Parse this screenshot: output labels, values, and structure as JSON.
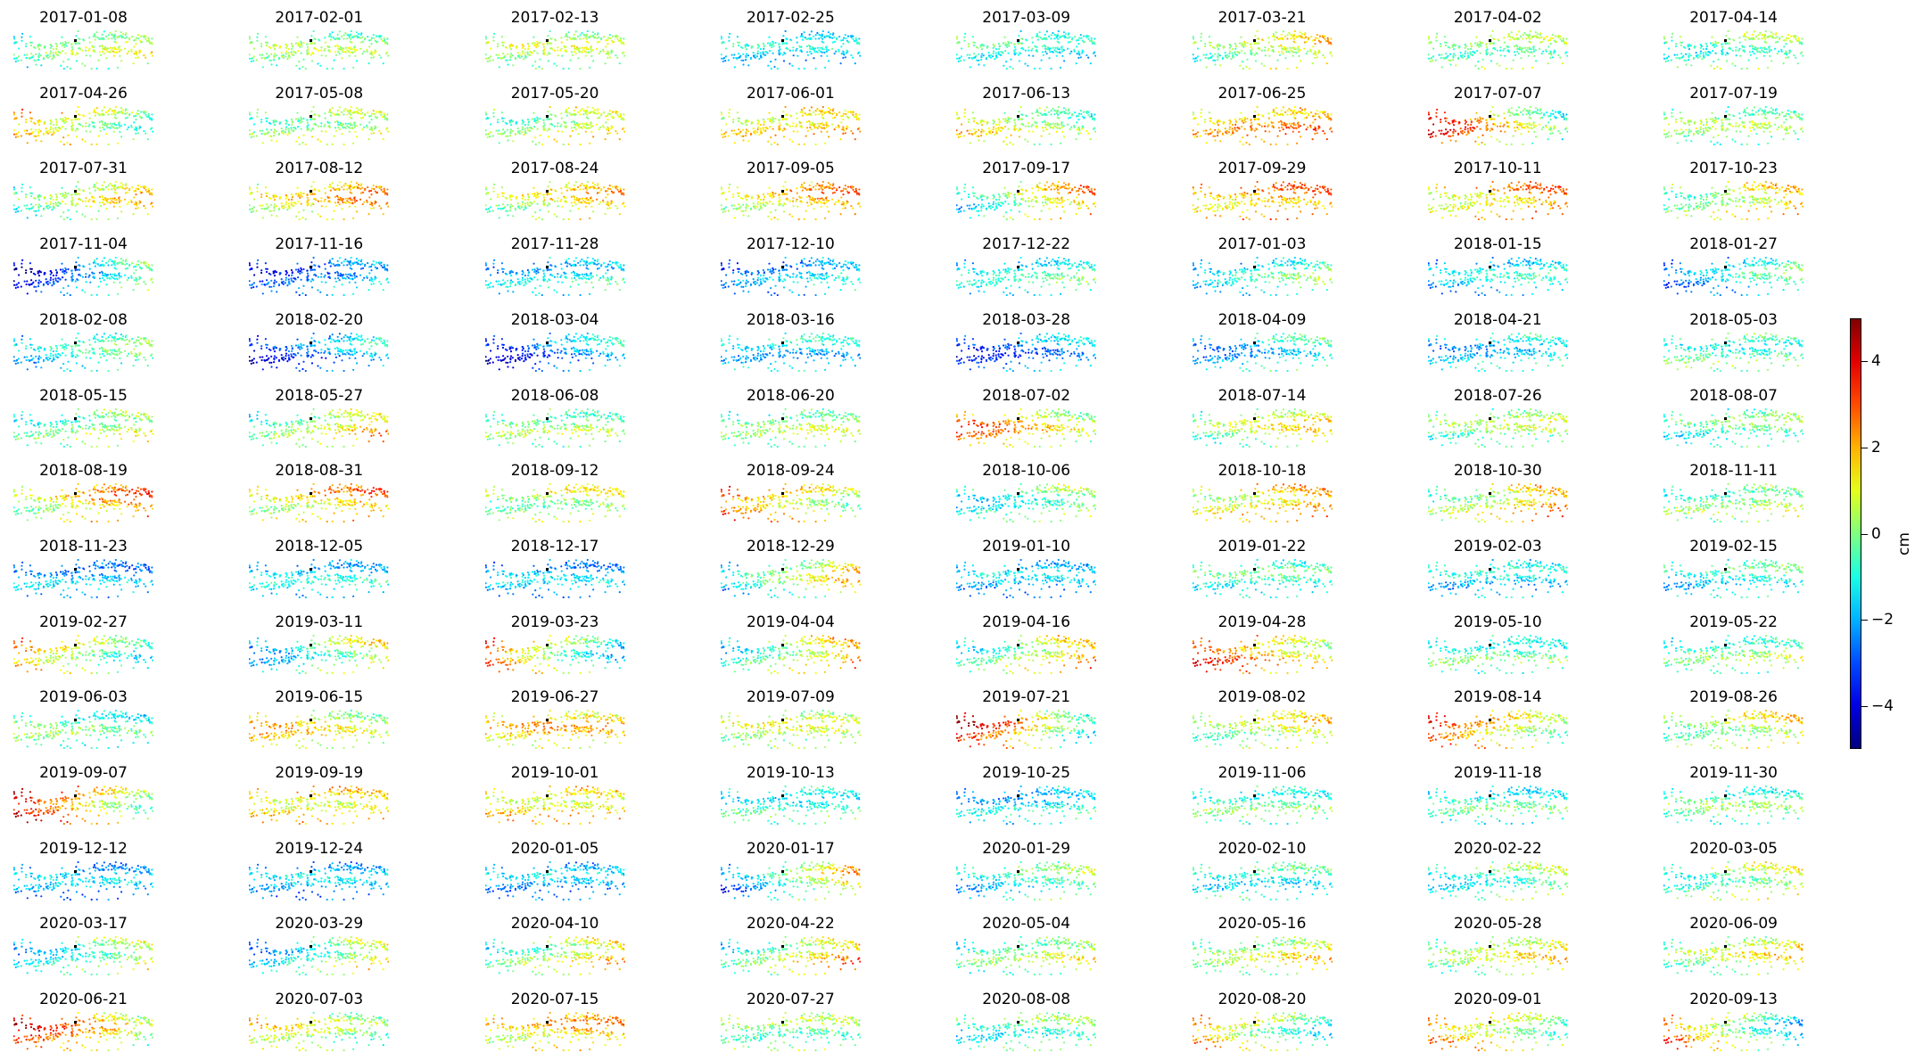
{
  "chart_data": {
    "type": "scatter",
    "title": "",
    "colormap": "jet",
    "colorbar": {
      "label": "cm",
      "vmin": -5,
      "vmax": 5,
      "ticks": [
        4,
        2,
        0,
        -2,
        -4
      ],
      "tick_labels": [
        "4",
        "2",
        "0",
        "−2",
        "−4"
      ]
    },
    "reference_point_color": "#000000",
    "axes_visible": false,
    "panels": [
      {
        "date": "2017-01-08",
        "mean": 0.0,
        "trend": 1.0
      },
      {
        "date": "2017-02-01",
        "mean": 0.0,
        "trend": 0.0
      },
      {
        "date": "2017-02-13",
        "mean": 0.3,
        "trend": 0.0
      },
      {
        "date": "2017-02-25",
        "mean": -1.5,
        "trend": 0.0
      },
      {
        "date": "2017-03-09",
        "mean": -1.0,
        "trend": -0.5
      },
      {
        "date": "2017-03-21",
        "mean": 0.5,
        "trend": 1.0
      },
      {
        "date": "2017-04-02",
        "mean": 0.0,
        "trend": 0.0
      },
      {
        "date": "2017-04-14",
        "mean": -0.3,
        "trend": 0.5
      },
      {
        "date": "2017-04-26",
        "mean": 0.8,
        "trend": -1.5
      },
      {
        "date": "2017-05-08",
        "mean": 0.3,
        "trend": 0.5
      },
      {
        "date": "2017-05-20",
        "mean": 0.5,
        "trend": 1.0
      },
      {
        "date": "2017-06-01",
        "mean": 1.5,
        "trend": 0.5
      },
      {
        "date": "2017-06-13",
        "mean": 0.5,
        "trend": -1.0
      },
      {
        "date": "2017-06-25",
        "mean": 2.0,
        "trend": 0.5
      },
      {
        "date": "2017-07-07",
        "mean": 1.5,
        "trend": -2.5
      },
      {
        "date": "2017-07-19",
        "mean": 0.0,
        "trend": 0.0
      },
      {
        "date": "2017-07-31",
        "mean": 0.5,
        "trend": 1.5
      },
      {
        "date": "2017-08-12",
        "mean": 1.5,
        "trend": 1.0
      },
      {
        "date": "2017-08-24",
        "mean": 1.0,
        "trend": 1.0
      },
      {
        "date": "2017-09-05",
        "mean": 1.5,
        "trend": 1.0
      },
      {
        "date": "2017-09-17",
        "mean": 0.5,
        "trend": 2.0
      },
      {
        "date": "2017-09-29",
        "mean": 2.0,
        "trend": 0.5
      },
      {
        "date": "2017-10-11",
        "mean": 1.8,
        "trend": 1.0
      },
      {
        "date": "2017-10-23",
        "mean": 0.8,
        "trend": 1.5
      },
      {
        "date": "2017-11-04",
        "mean": -2.0,
        "trend": 2.5
      },
      {
        "date": "2017-11-16",
        "mean": -2.5,
        "trend": 1.0
      },
      {
        "date": "2017-11-28",
        "mean": -1.5,
        "trend": 0.5
      },
      {
        "date": "2017-12-10",
        "mean": -2.0,
        "trend": 1.0
      },
      {
        "date": "2017-12-22",
        "mean": -1.0,
        "trend": 0.5
      },
      {
        "date": "2017-01-03",
        "mean": -1.0,
        "trend": 1.0
      },
      {
        "date": "2018-01-15",
        "mean": -1.5,
        "trend": 0.5
      },
      {
        "date": "2018-01-27",
        "mean": -1.5,
        "trend": 1.5
      },
      {
        "date": "2018-02-08",
        "mean": -1.0,
        "trend": 1.0
      },
      {
        "date": "2018-02-20",
        "mean": -2.5,
        "trend": 1.5
      },
      {
        "date": "2018-03-04",
        "mean": -2.5,
        "trend": 1.5
      },
      {
        "date": "2018-03-16",
        "mean": -1.5,
        "trend": 0.0
      },
      {
        "date": "2018-03-28",
        "mean": -2.5,
        "trend": 1.0
      },
      {
        "date": "2018-04-09",
        "mean": -1.5,
        "trend": 1.0
      },
      {
        "date": "2018-04-21",
        "mean": -1.5,
        "trend": 0.5
      },
      {
        "date": "2018-05-03",
        "mean": -0.5,
        "trend": 0.0
      },
      {
        "date": "2018-05-15",
        "mean": 0.0,
        "trend": 1.0
      },
      {
        "date": "2018-05-27",
        "mean": 0.5,
        "trend": 1.5
      },
      {
        "date": "2018-06-08",
        "mean": 0.0,
        "trend": 0.0
      },
      {
        "date": "2018-06-20",
        "mean": 0.0,
        "trend": 0.5
      },
      {
        "date": "2018-07-02",
        "mean": 1.5,
        "trend": -1.5
      },
      {
        "date": "2018-07-14",
        "mean": 0.5,
        "trend": 1.0
      },
      {
        "date": "2018-07-26",
        "mean": 0.0,
        "trend": 0.5
      },
      {
        "date": "2018-08-07",
        "mean": -0.5,
        "trend": 0.5
      },
      {
        "date": "2018-08-19",
        "mean": 1.5,
        "trend": 1.5
      },
      {
        "date": "2018-08-31",
        "mean": 1.5,
        "trend": 1.0
      },
      {
        "date": "2018-09-12",
        "mean": 0.5,
        "trend": 0.5
      },
      {
        "date": "2018-09-24",
        "mean": 1.5,
        "trend": -1.5
      },
      {
        "date": "2018-10-06",
        "mean": -0.5,
        "trend": 1.0
      },
      {
        "date": "2018-10-18",
        "mean": 1.5,
        "trend": 1.0
      },
      {
        "date": "2018-10-30",
        "mean": 1.0,
        "trend": 1.5
      },
      {
        "date": "2018-11-11",
        "mean": 0.0,
        "trend": 0.5
      },
      {
        "date": "2018-11-23",
        "mean": -2.0,
        "trend": 0.0
      },
      {
        "date": "2018-12-05",
        "mean": -1.5,
        "trend": 0.0
      },
      {
        "date": "2018-12-17",
        "mean": -2.0,
        "trend": 0.0
      },
      {
        "date": "2018-12-29",
        "mean": 0.0,
        "trend": 2.0
      },
      {
        "date": "2019-01-10",
        "mean": -2.0,
        "trend": 0.0
      },
      {
        "date": "2019-01-22",
        "mean": -0.8,
        "trend": 0.0
      },
      {
        "date": "2019-02-03",
        "mean": -1.5,
        "trend": 0.0
      },
      {
        "date": "2019-02-15",
        "mean": -1.0,
        "trend": 0.5
      },
      {
        "date": "2019-02-27",
        "mean": 0.5,
        "trend": -2.0
      },
      {
        "date": "2019-03-11",
        "mean": -0.5,
        "trend": 2.0
      },
      {
        "date": "2019-03-23",
        "mean": 0.5,
        "trend": -2.5
      },
      {
        "date": "2019-04-04",
        "mean": 0.5,
        "trend": 2.0
      },
      {
        "date": "2019-04-16",
        "mean": 0.5,
        "trend": 2.0
      },
      {
        "date": "2019-04-28",
        "mean": 2.0,
        "trend": -1.5
      },
      {
        "date": "2019-05-10",
        "mean": -0.5,
        "trend": 0.0
      },
      {
        "date": "2019-05-22",
        "mean": -0.3,
        "trend": 0.5
      },
      {
        "date": "2019-06-03",
        "mean": -0.5,
        "trend": -0.5
      },
      {
        "date": "2019-06-15",
        "mean": 1.0,
        "trend": -1.0
      },
      {
        "date": "2019-06-27",
        "mean": 1.5,
        "trend": 0.0
      },
      {
        "date": "2019-07-09",
        "mean": 0.5,
        "trend": 0.0
      },
      {
        "date": "2019-07-21",
        "mean": 1.5,
        "trend": -3.0
      },
      {
        "date": "2019-08-02",
        "mean": 0.5,
        "trend": 1.0
      },
      {
        "date": "2019-08-14",
        "mean": 1.5,
        "trend": -2.0
      },
      {
        "date": "2019-08-26",
        "mean": 0.5,
        "trend": 1.0
      },
      {
        "date": "2019-09-07",
        "mean": 2.0,
        "trend": -2.5
      },
      {
        "date": "2019-09-19",
        "mean": 1.5,
        "trend": 0.0
      },
      {
        "date": "2019-10-01",
        "mean": 1.5,
        "trend": 0.0
      },
      {
        "date": "2019-10-13",
        "mean": -0.8,
        "trend": 0.0
      },
      {
        "date": "2019-10-25",
        "mean": -1.5,
        "trend": 0.5
      },
      {
        "date": "2019-11-06",
        "mean": -0.5,
        "trend": 0.0
      },
      {
        "date": "2019-11-18",
        "mean": -0.8,
        "trend": 0.0
      },
      {
        "date": "2019-11-30",
        "mean": -0.5,
        "trend": 0.0
      },
      {
        "date": "2019-12-12",
        "mean": -2.0,
        "trend": 0.0
      },
      {
        "date": "2019-12-24",
        "mean": -2.0,
        "trend": 0.0
      },
      {
        "date": "2020-01-05",
        "mean": -2.0,
        "trend": 0.0
      },
      {
        "date": "2020-01-17",
        "mean": -0.5,
        "trend": 2.5
      },
      {
        "date": "2020-01-29",
        "mean": -0.8,
        "trend": 1.0
      },
      {
        "date": "2020-02-10",
        "mean": -1.0,
        "trend": 0.0
      },
      {
        "date": "2020-02-22",
        "mean": -0.5,
        "trend": 1.0
      },
      {
        "date": "2020-03-05",
        "mean": 0.0,
        "trend": 1.0
      },
      {
        "date": "2020-03-17",
        "mean": -0.5,
        "trend": 1.5
      },
      {
        "date": "2020-03-29",
        "mean": -0.5,
        "trend": 2.0
      },
      {
        "date": "2020-04-10",
        "mean": 0.5,
        "trend": 1.5
      },
      {
        "date": "2020-04-22",
        "mean": 0.5,
        "trend": 2.0
      },
      {
        "date": "2020-05-04",
        "mean": 0.0,
        "trend": 1.0
      },
      {
        "date": "2020-05-16",
        "mean": 0.5,
        "trend": 1.0
      },
      {
        "date": "2020-05-28",
        "mean": 0.5,
        "trend": 1.0
      },
      {
        "date": "2020-06-09",
        "mean": 0.5,
        "trend": 1.0
      },
      {
        "date": "2020-06-21",
        "mean": 2.0,
        "trend": -2.0
      },
      {
        "date": "2020-07-03",
        "mean": 0.5,
        "trend": -1.0
      },
      {
        "date": "2020-07-15",
        "mean": 1.5,
        "trend": 0.5
      },
      {
        "date": "2020-07-27",
        "mean": 0.0,
        "trend": 0.0
      },
      {
        "date": "2020-08-08",
        "mean": -0.5,
        "trend": 0.5
      },
      {
        "date": "2020-08-20",
        "mean": 0.5,
        "trend": -2.0
      },
      {
        "date": "2020-09-01",
        "mean": 1.0,
        "trend": -1.5
      },
      {
        "date": "2020-09-13",
        "mean": 0.5,
        "trend": -2.5
      }
    ]
  }
}
